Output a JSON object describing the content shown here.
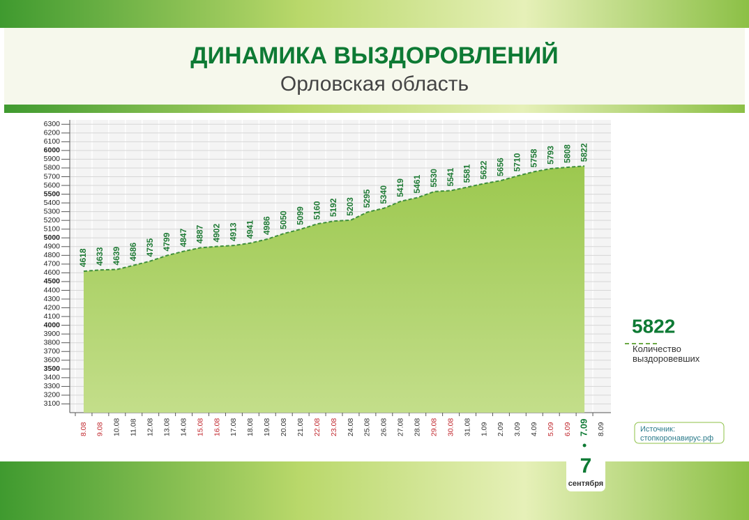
{
  "chart_data": {
    "type": "area",
    "title": "ДИНАМИКА ВЫЗДОРОВЛЕНИЙ",
    "subtitle": "Орловская область",
    "categories": [
      "8.08",
      "9.08",
      "10.08",
      "11.08",
      "12.08",
      "13.08",
      "14.08",
      "15.08",
      "16.08",
      "17.08",
      "18.08",
      "19.08",
      "20.08",
      "21.08",
      "22.08",
      "23.08",
      "24.08",
      "25.08",
      "26.08",
      "27.08",
      "28.08",
      "29.08",
      "30.08",
      "31.08",
      "1.09",
      "2.09",
      "3.09",
      "4.09",
      "5.09",
      "6.09",
      "7.09",
      "8.09"
    ],
    "category_label_colors": [
      "#c0272d",
      "#c0272d",
      "#333333",
      "#333333",
      "#333333",
      "#333333",
      "#333333",
      "#c0272d",
      "#c0272d",
      "#333333",
      "#333333",
      "#333333",
      "#333333",
      "#333333",
      "#c0272d",
      "#c0272d",
      "#333333",
      "#333333",
      "#333333",
      "#333333",
      "#333333",
      "#c0272d",
      "#c0272d",
      "#333333",
      "#333333",
      "#333333",
      "#333333",
      "#333333",
      "#c0272d",
      "#c0272d",
      "#0e7a34",
      "#333333"
    ],
    "series": [
      {
        "name": "Количество выздоровевших",
        "color": "#a3cc5a",
        "line_color": "#3f8f3a",
        "values": [
          4618,
          4633,
          4639,
          4686,
          4735,
          4799,
          4847,
          4887,
          4902,
          4913,
          4941,
          4986,
          5050,
          5099,
          5160,
          5192,
          5203,
          5295,
          5340,
          5419,
          5461,
          5530,
          5541,
          5581,
          5622,
          5656,
          5710,
          5758,
          5793,
          5808,
          5822,
          null
        ]
      }
    ],
    "ylim": [
      3000,
      6350
    ],
    "yticks": [
      3100,
      3200,
      3300,
      3400,
      3500,
      3600,
      3700,
      3800,
      3900,
      4000,
      4100,
      4200,
      4300,
      4400,
      4500,
      4600,
      4700,
      4800,
      4900,
      5000,
      5100,
      5200,
      5300,
      5400,
      5500,
      5600,
      5700,
      5800,
      5900,
      6000,
      6100,
      6200,
      6300
    ],
    "grid": true,
    "date_badge": {
      "day": "7",
      "month": "сентября"
    },
    "source": {
      "label": "Источник:",
      "site": "стопкоронавирус.рф"
    }
  }
}
